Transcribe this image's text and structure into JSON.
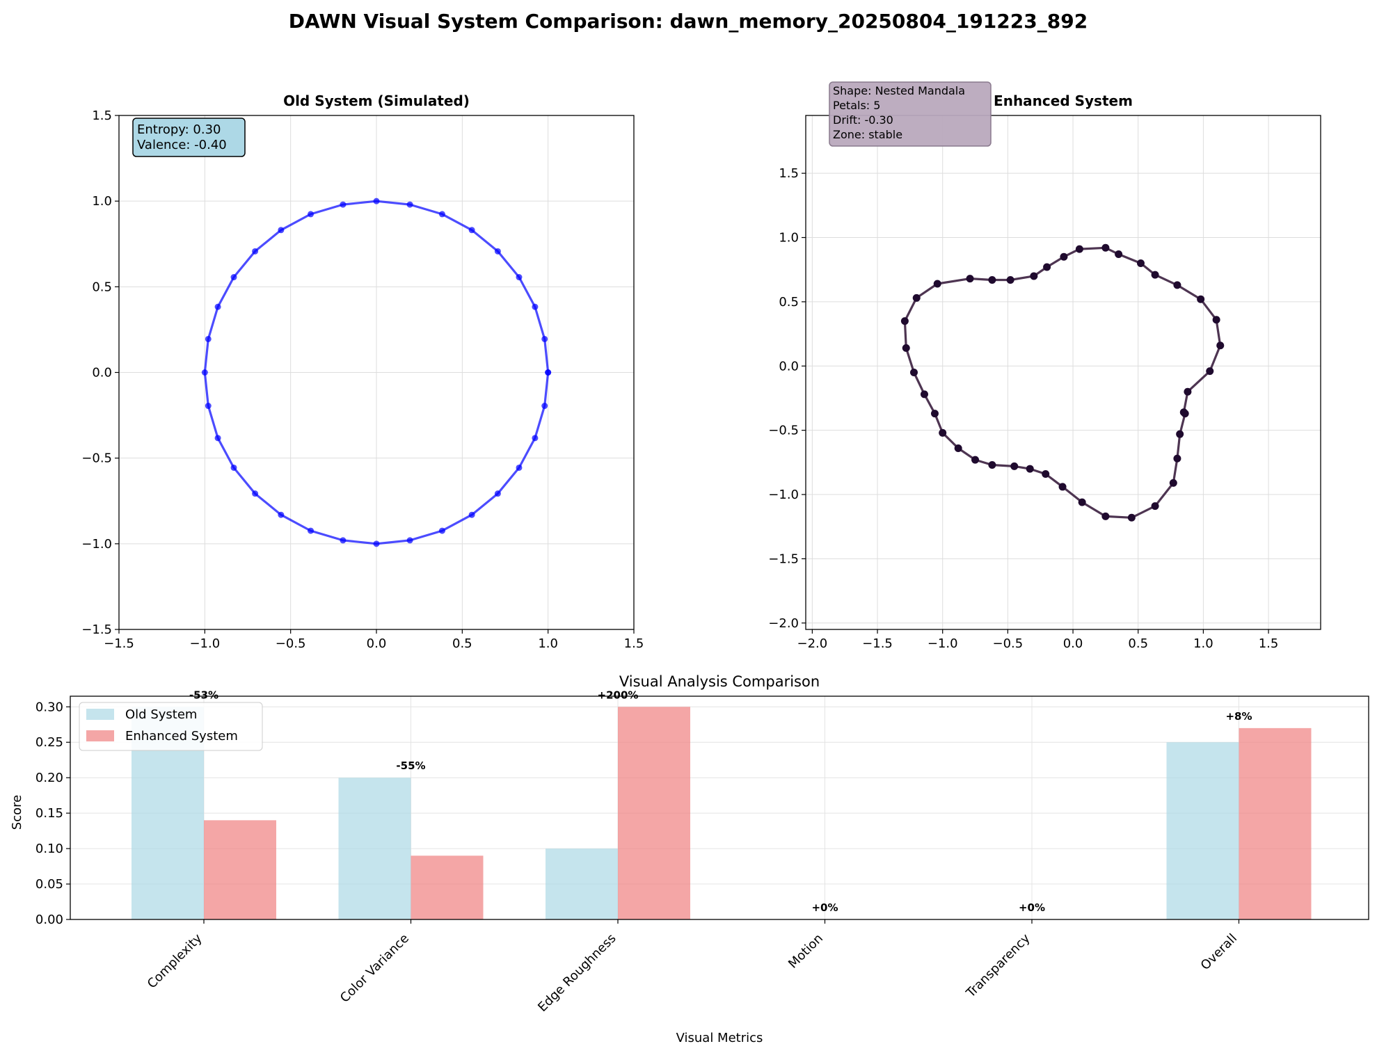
{
  "figure_title": "DAWN Visual System Comparison: dawn_memory_20250804_191223_892",
  "colors": {
    "old_line": "#0000ff",
    "enhanced_line": "#3b1f3f",
    "enhanced_marker": "#1f0a2e",
    "enhanced_box": "#b9a9bd",
    "old_box": "#add8e6",
    "bar_old": "#add8e6",
    "bar_enhanced": "#f08080"
  },
  "chart_data": [
    {
      "type": "line",
      "title": "Old System (Simulated)",
      "xlim": [
        -1.5,
        1.5
      ],
      "ylim": [
        -1.5,
        1.5
      ],
      "xticks": [
        -1.5,
        -1.0,
        -0.5,
        0.0,
        0.5,
        1.0,
        1.5
      ],
      "yticks": [
        -1.5,
        -1.0,
        -0.5,
        0.0,
        0.5,
        1.0,
        1.5
      ],
      "grid": true,
      "annotation": [
        "Entropy: 0.30",
        "Valence: -0.40"
      ],
      "points": [
        [
          1.0,
          0.0
        ],
        [
          0.98,
          0.195
        ],
        [
          0.924,
          0.383
        ],
        [
          0.831,
          0.556
        ],
        [
          0.707,
          0.707
        ],
        [
          0.556,
          0.831
        ],
        [
          0.383,
          0.924
        ],
        [
          0.195,
          0.98
        ],
        [
          0.0,
          1.0
        ],
        [
          -0.195,
          0.98
        ],
        [
          -0.383,
          0.924
        ],
        [
          -0.556,
          0.831
        ],
        [
          -0.707,
          0.707
        ],
        [
          -0.831,
          0.556
        ],
        [
          -0.924,
          0.383
        ],
        [
          -0.98,
          0.195
        ],
        [
          -1.0,
          0.0
        ],
        [
          -0.98,
          -0.195
        ],
        [
          -0.924,
          -0.383
        ],
        [
          -0.831,
          -0.556
        ],
        [
          -0.707,
          -0.707
        ],
        [
          -0.556,
          -0.831
        ],
        [
          -0.383,
          -0.924
        ],
        [
          -0.195,
          -0.98
        ],
        [
          0.0,
          -1.0
        ],
        [
          0.195,
          -0.98
        ],
        [
          0.383,
          -0.924
        ],
        [
          0.556,
          -0.831
        ],
        [
          0.707,
          -0.707
        ],
        [
          0.831,
          -0.556
        ],
        [
          0.924,
          -0.383
        ],
        [
          0.98,
          -0.195
        ],
        [
          1.0,
          0.0
        ]
      ]
    },
    {
      "type": "line",
      "title": "Enhanced System",
      "xlim": [
        -2.05,
        1.9
      ],
      "ylim": [
        -2.05,
        1.95
      ],
      "xticks": [
        -2.0,
        -1.5,
        -1.0,
        -0.5,
        0.0,
        0.5,
        1.0,
        1.5
      ],
      "yticks": [
        -2.0,
        -1.5,
        -1.0,
        -0.5,
        0.0,
        0.5,
        1.0,
        1.5
      ],
      "grid": true,
      "annotation": [
        "Shape: Nested Mandala",
        "Petals: 5",
        "Drift: -0.30",
        "Zone: stable"
      ],
      "points": [
        [
          0.85,
          -0.36
        ],
        [
          0.88,
          -0.2
        ],
        [
          1.05,
          -0.04
        ],
        [
          1.13,
          0.16
        ],
        [
          1.1,
          0.36
        ],
        [
          0.98,
          0.52
        ],
        [
          0.8,
          0.63
        ],
        [
          0.63,
          0.71
        ],
        [
          0.52,
          0.8
        ],
        [
          0.35,
          0.87
        ],
        [
          0.25,
          0.92
        ],
        [
          0.05,
          0.91
        ],
        [
          -0.07,
          0.85
        ],
        [
          -0.2,
          0.77
        ],
        [
          -0.3,
          0.7
        ],
        [
          -0.48,
          0.67
        ],
        [
          -0.62,
          0.67
        ],
        [
          -0.79,
          0.68
        ],
        [
          -1.04,
          0.64
        ],
        [
          -1.2,
          0.53
        ],
        [
          -1.29,
          0.35
        ],
        [
          -1.28,
          0.14
        ],
        [
          -1.22,
          -0.05
        ],
        [
          -1.14,
          -0.22
        ],
        [
          -1.06,
          -0.37
        ],
        [
          -1.0,
          -0.52
        ],
        [
          -0.88,
          -0.64
        ],
        [
          -0.75,
          -0.73
        ],
        [
          -0.62,
          -0.77
        ],
        [
          -0.45,
          -0.78
        ],
        [
          -0.33,
          -0.8
        ],
        [
          -0.21,
          -0.84
        ],
        [
          -0.08,
          -0.94
        ],
        [
          0.07,
          -1.06
        ],
        [
          0.25,
          -1.17
        ],
        [
          0.45,
          -1.18
        ],
        [
          0.63,
          -1.09
        ],
        [
          0.77,
          -0.91
        ],
        [
          0.8,
          -0.72
        ],
        [
          0.82,
          -0.53
        ],
        [
          0.86,
          -0.37
        ]
      ]
    },
    {
      "type": "bar",
      "title": "Visual Analysis Comparison",
      "xlabel": "Visual Metrics",
      "ylabel": "Score",
      "ylim": [
        0,
        0.315
      ],
      "yticks": [
        0.0,
        0.05,
        0.1,
        0.15,
        0.2,
        0.25,
        0.3
      ],
      "grid": true,
      "legend_position": "upper-left",
      "categories": [
        "Complexity",
        "Color Variance",
        "Edge Roughness",
        "Motion",
        "Transparency",
        "Overall"
      ],
      "series": [
        {
          "name": "Old System",
          "values": [
            0.3,
            0.2,
            0.1,
            0.0,
            0.0,
            0.25
          ]
        },
        {
          "name": "Enhanced System",
          "values": [
            0.14,
            0.09,
            0.3,
            0.0,
            0.0,
            0.27
          ]
        }
      ],
      "annotations": [
        "-53%",
        "-55%",
        "+200%",
        "+0%",
        "+0%",
        "+8%"
      ]
    }
  ]
}
